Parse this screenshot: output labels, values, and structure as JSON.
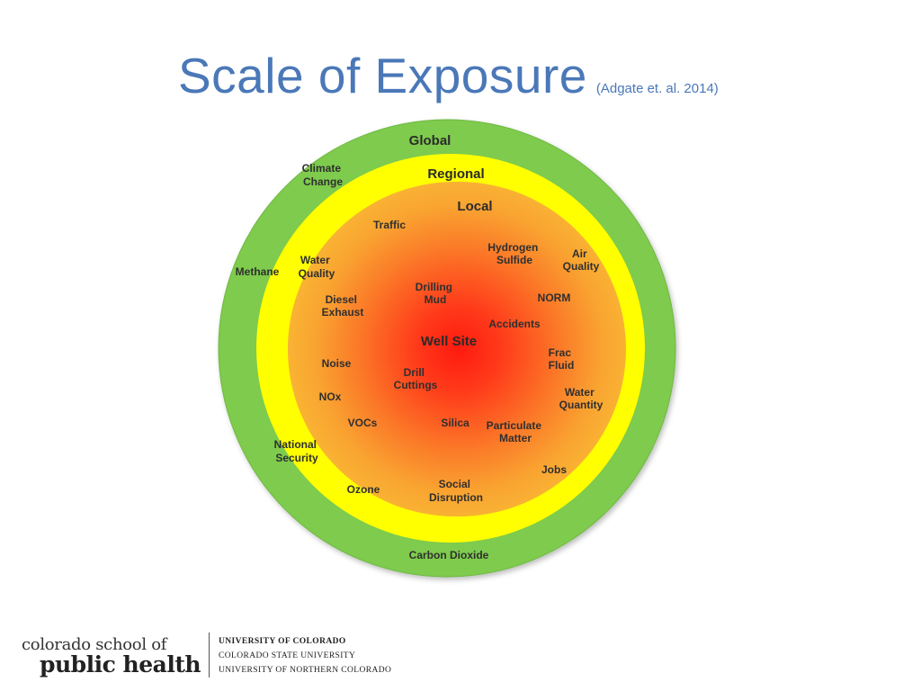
{
  "slide": {
    "title": "Scale of Exposure",
    "citation": "(Adgate et. al. 2014)"
  },
  "diagram": {
    "rings": {
      "global": "Global",
      "regional": "Regional",
      "local": "Local",
      "center": "Well Site"
    },
    "colors": {
      "global_ring": "#7ecb4e",
      "regional_ring": "#ffff00",
      "local_ring": "#f9b233",
      "center": "#ff1a0f"
    },
    "items": {
      "climate_change": [
        "Climate",
        "Change"
      ],
      "methane": "Methane",
      "carbon_dioxide": "Carbon Dioxide",
      "national_security": [
        "National",
        "Security"
      ],
      "traffic": "Traffic",
      "water_quality": [
        "Water",
        "Quality"
      ],
      "air_quality": [
        "Air",
        "Quality"
      ],
      "ozone": "Ozone",
      "jobs": "Jobs",
      "hydrogen_sulfide": [
        "Hydrogen",
        "Sulfide"
      ],
      "diesel_exhaust": [
        "Diesel",
        "Exhaust"
      ],
      "norm": "NORM",
      "noise": "Noise",
      "nox": "NOx",
      "vocs": "VOCs",
      "frac_fluid": [
        "Frac",
        "Fluid"
      ],
      "water_quantity": [
        "Water",
        "Quantity"
      ],
      "particulate_matter": [
        "Particulate",
        "Matter"
      ],
      "social_disruption": [
        "Social",
        "Disruption"
      ],
      "drilling_mud": [
        "Drilling",
        "Mud"
      ],
      "accidents": "Accidents",
      "drill_cuttings": [
        "Drill",
        "Cuttings"
      ],
      "silica": "Silica"
    }
  },
  "footer": {
    "school_line1": "colorado school of",
    "school_line2": "public health",
    "universities": [
      "UNIVERSITY OF COLORADO",
      "COLORADO STATE UNIVERSITY",
      "UNIVERSITY OF NORTHERN COLORADO"
    ]
  }
}
